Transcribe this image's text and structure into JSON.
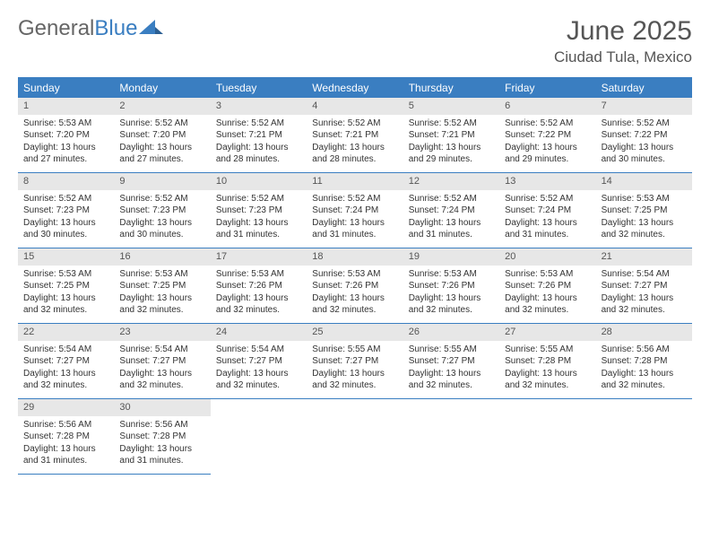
{
  "logo": {
    "text1": "General",
    "text2": "Blue"
  },
  "title": "June 2025",
  "location": "Ciudad Tula, Mexico",
  "colors": {
    "accent": "#3a7ec1",
    "header_text": "#ffffff",
    "daynum_bg": "#e7e7e7",
    "body_text": "#333333",
    "title_text": "#555555",
    "background": "#ffffff"
  },
  "calendar": {
    "day_headers": [
      "Sunday",
      "Monday",
      "Tuesday",
      "Wednesday",
      "Thursday",
      "Friday",
      "Saturday"
    ],
    "first_weekday_index": 0,
    "days": [
      {
        "n": "1",
        "sunrise": "5:53 AM",
        "sunset": "7:20 PM",
        "daylight": "13 hours and 27 minutes."
      },
      {
        "n": "2",
        "sunrise": "5:52 AM",
        "sunset": "7:20 PM",
        "daylight": "13 hours and 27 minutes."
      },
      {
        "n": "3",
        "sunrise": "5:52 AM",
        "sunset": "7:21 PM",
        "daylight": "13 hours and 28 minutes."
      },
      {
        "n": "4",
        "sunrise": "5:52 AM",
        "sunset": "7:21 PM",
        "daylight": "13 hours and 28 minutes."
      },
      {
        "n": "5",
        "sunrise": "5:52 AM",
        "sunset": "7:21 PM",
        "daylight": "13 hours and 29 minutes."
      },
      {
        "n": "6",
        "sunrise": "5:52 AM",
        "sunset": "7:22 PM",
        "daylight": "13 hours and 29 minutes."
      },
      {
        "n": "7",
        "sunrise": "5:52 AM",
        "sunset": "7:22 PM",
        "daylight": "13 hours and 30 minutes."
      },
      {
        "n": "8",
        "sunrise": "5:52 AM",
        "sunset": "7:23 PM",
        "daylight": "13 hours and 30 minutes."
      },
      {
        "n": "9",
        "sunrise": "5:52 AM",
        "sunset": "7:23 PM",
        "daylight": "13 hours and 30 minutes."
      },
      {
        "n": "10",
        "sunrise": "5:52 AM",
        "sunset": "7:23 PM",
        "daylight": "13 hours and 31 minutes."
      },
      {
        "n": "11",
        "sunrise": "5:52 AM",
        "sunset": "7:24 PM",
        "daylight": "13 hours and 31 minutes."
      },
      {
        "n": "12",
        "sunrise": "5:52 AM",
        "sunset": "7:24 PM",
        "daylight": "13 hours and 31 minutes."
      },
      {
        "n": "13",
        "sunrise": "5:52 AM",
        "sunset": "7:24 PM",
        "daylight": "13 hours and 31 minutes."
      },
      {
        "n": "14",
        "sunrise": "5:53 AM",
        "sunset": "7:25 PM",
        "daylight": "13 hours and 32 minutes."
      },
      {
        "n": "15",
        "sunrise": "5:53 AM",
        "sunset": "7:25 PM",
        "daylight": "13 hours and 32 minutes."
      },
      {
        "n": "16",
        "sunrise": "5:53 AM",
        "sunset": "7:25 PM",
        "daylight": "13 hours and 32 minutes."
      },
      {
        "n": "17",
        "sunrise": "5:53 AM",
        "sunset": "7:26 PM",
        "daylight": "13 hours and 32 minutes."
      },
      {
        "n": "18",
        "sunrise": "5:53 AM",
        "sunset": "7:26 PM",
        "daylight": "13 hours and 32 minutes."
      },
      {
        "n": "19",
        "sunrise": "5:53 AM",
        "sunset": "7:26 PM",
        "daylight": "13 hours and 32 minutes."
      },
      {
        "n": "20",
        "sunrise": "5:53 AM",
        "sunset": "7:26 PM",
        "daylight": "13 hours and 32 minutes."
      },
      {
        "n": "21",
        "sunrise": "5:54 AM",
        "sunset": "7:27 PM",
        "daylight": "13 hours and 32 minutes."
      },
      {
        "n": "22",
        "sunrise": "5:54 AM",
        "sunset": "7:27 PM",
        "daylight": "13 hours and 32 minutes."
      },
      {
        "n": "23",
        "sunrise": "5:54 AM",
        "sunset": "7:27 PM",
        "daylight": "13 hours and 32 minutes."
      },
      {
        "n": "24",
        "sunrise": "5:54 AM",
        "sunset": "7:27 PM",
        "daylight": "13 hours and 32 minutes."
      },
      {
        "n": "25",
        "sunrise": "5:55 AM",
        "sunset": "7:27 PM",
        "daylight": "13 hours and 32 minutes."
      },
      {
        "n": "26",
        "sunrise": "5:55 AM",
        "sunset": "7:27 PM",
        "daylight": "13 hours and 32 minutes."
      },
      {
        "n": "27",
        "sunrise": "5:55 AM",
        "sunset": "7:28 PM",
        "daylight": "13 hours and 32 minutes."
      },
      {
        "n": "28",
        "sunrise": "5:56 AM",
        "sunset": "7:28 PM",
        "daylight": "13 hours and 32 minutes."
      },
      {
        "n": "29",
        "sunrise": "5:56 AM",
        "sunset": "7:28 PM",
        "daylight": "13 hours and 31 minutes."
      },
      {
        "n": "30",
        "sunrise": "5:56 AM",
        "sunset": "7:28 PM",
        "daylight": "13 hours and 31 minutes."
      }
    ],
    "labels": {
      "sunrise": "Sunrise:",
      "sunset": "Sunset:",
      "daylight": "Daylight:"
    }
  },
  "typography": {
    "title_fontsize": 30,
    "location_fontsize": 17,
    "day_header_fontsize": 12,
    "cell_fontsize": 10
  }
}
